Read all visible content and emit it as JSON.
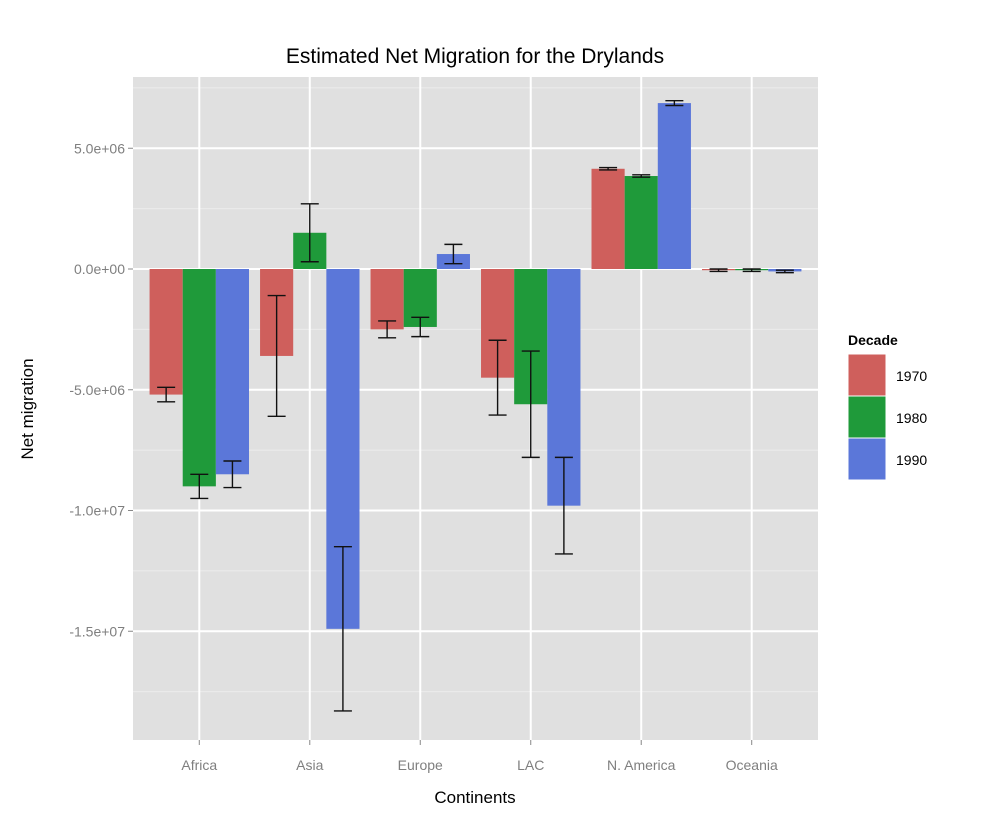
{
  "chart_data": {
    "type": "bar",
    "title": "Estimated Net Migration for the Drylands",
    "xlabel": "Continents",
    "ylabel": "Net migration",
    "categories": [
      "Africa",
      "Asia",
      "Europe",
      "LAC",
      "N. America",
      "Oceania"
    ],
    "ylim": [
      -19500000,
      9500000
    ],
    "yticks": [
      5000000,
      0,
      -5000000,
      -10000000,
      -15000000
    ],
    "ytick_labels": [
      "5.0e+06",
      "0.0e+00",
      "-5.0e+06",
      "-1.0e+07",
      "-1.5e+07"
    ],
    "grid": true,
    "legend": {
      "title": "Decade",
      "position": "right"
    },
    "series": [
      {
        "name": "1970",
        "color": "#cf5f5c",
        "values": [
          -5200000,
          -3600000,
          -2500000,
          -4500000,
          4150000,
          -50000
        ],
        "errors": [
          300000,
          2500000,
          350000,
          1550000,
          50000,
          50000
        ]
      },
      {
        "name": "1980",
        "color": "#1f9a3a",
        "values": [
          -9000000,
          1500000,
          -2400000,
          -5600000,
          3850000,
          -50000
        ],
        "errors": [
          500000,
          1200000,
          400000,
          2200000,
          50000,
          50000
        ]
      },
      {
        "name": "1990",
        "color": "#5b77d9",
        "values": [
          -8500000,
          -14900000,
          620000,
          -9800000,
          6870000,
          -100000
        ],
        "errors": [
          550000,
          3400000,
          400000,
          2000000,
          100000,
          50000
        ]
      }
    ]
  }
}
